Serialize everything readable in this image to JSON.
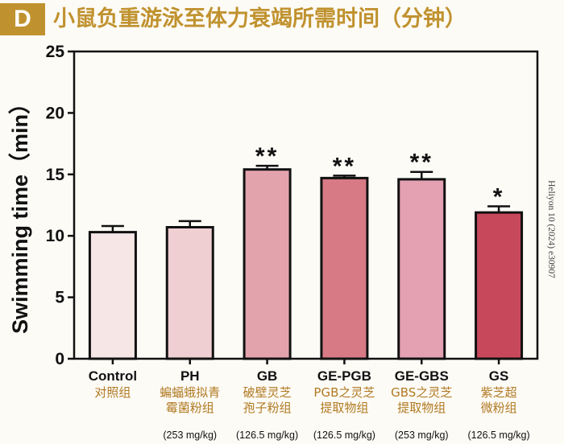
{
  "header": {
    "badge": "D",
    "title": "小鼠负重游泳至体力衰竭所需时间（分钟）"
  },
  "citation": "Heliyon 10 (2024) e30907",
  "colors": {
    "accent": "#c0922f",
    "bars": [
      "#f6e6e6",
      "#f0cfd3",
      "#e3a3ad",
      "#d77a86",
      "#e3a1b2",
      "#c8485b"
    ]
  },
  "chart_data": {
    "type": "bar",
    "ylabel": "Swimming time（min）",
    "ylim": [
      0,
      25
    ],
    "yticks": [
      0,
      5,
      10,
      15,
      20,
      25
    ],
    "categories": [
      "Control",
      "PH",
      "GB",
      "GE-PGB",
      "GE-GBS",
      "GS"
    ],
    "categories_cn": [
      [
        "对照组"
      ],
      [
        "蝙蝠蛾拟青",
        "霉菌粉组"
      ],
      [
        "破壁灵芝",
        "孢子粉组"
      ],
      [
        "PGB之灵芝",
        "提取物组"
      ],
      [
        "GBS之灵芝",
        "提取物组"
      ],
      [
        "紫芝超",
        "微粉组"
      ]
    ],
    "doses": [
      "",
      "(253 mg/kg)",
      "(126.5 mg/kg)",
      "(126.5 mg/kg)",
      "(253 mg/kg)",
      "(126.5 mg/kg)"
    ],
    "values": [
      10.3,
      10.7,
      15.4,
      14.7,
      14.6,
      11.9
    ],
    "errors": [
      0.5,
      0.5,
      0.3,
      0.2,
      0.6,
      0.5
    ],
    "significance": [
      "",
      "",
      "**",
      "**",
      "**",
      "*"
    ]
  }
}
